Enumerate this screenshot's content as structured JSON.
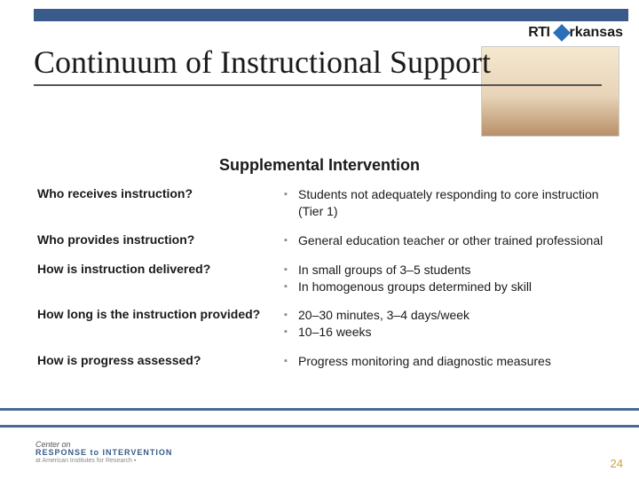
{
  "logo": {
    "rti": "RTI",
    "state_rest": "rkansas"
  },
  "title": "Continuum of Instructional Support",
  "subtitle": "Supplemental Intervention",
  "rows": [
    {
      "q": "Who receives instruction?",
      "a": [
        "Students not adequately responding to core instruction (Tier 1)"
      ]
    },
    {
      "q": "Who provides instruction?",
      "a": [
        "General education teacher or other trained professional"
      ]
    },
    {
      "q": "How is instruction delivered?",
      "a": [
        "In small groups of 3–5 students",
        "In homogenous groups determined by skill"
      ]
    },
    {
      "q": "How long is the instruction provided?",
      "a": [
        "20–30 minutes, 3–4 days/week",
        "10–16 weeks"
      ]
    },
    {
      "q": "How is progress assessed?",
      "a": [
        "Progress monitoring and diagnostic measures"
      ]
    }
  ],
  "footer": {
    "l1": "Center on",
    "l2": "RESPONSE to INTERVENTION",
    "l3": "at American Institutes for Research ▪"
  },
  "page_num": "24"
}
